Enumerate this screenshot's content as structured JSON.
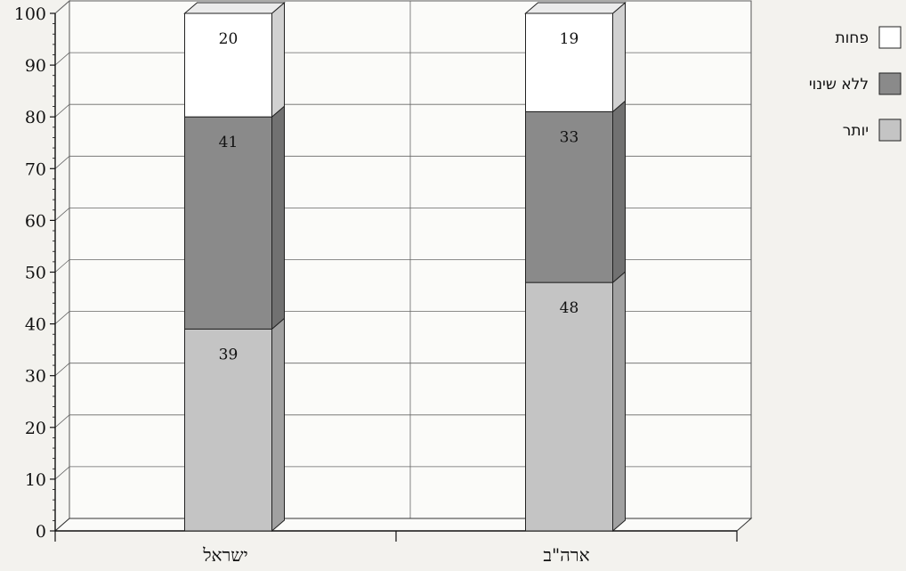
{
  "chart_data": {
    "type": "bar",
    "stacked": true,
    "three_d": true,
    "categories": [
      "ישראל",
      "ארה\"ב"
    ],
    "series": [
      {
        "name": "יותר",
        "values": [
          39,
          48
        ],
        "color": "#c4c4c4"
      },
      {
        "name": "ללא שינוי",
        "values": [
          41,
          33
        ],
        "color": "#8a8a8a"
      },
      {
        "name": "פחות",
        "values": [
          20,
          19
        ],
        "color": "#ffffff"
      }
    ],
    "ylim": [
      0,
      100
    ],
    "yticks": [
      0,
      10,
      20,
      30,
      40,
      50,
      60,
      70,
      80,
      90,
      100
    ],
    "grid": true,
    "legend_position": "top-right",
    "title": "",
    "xlabel": "",
    "ylabel": ""
  }
}
